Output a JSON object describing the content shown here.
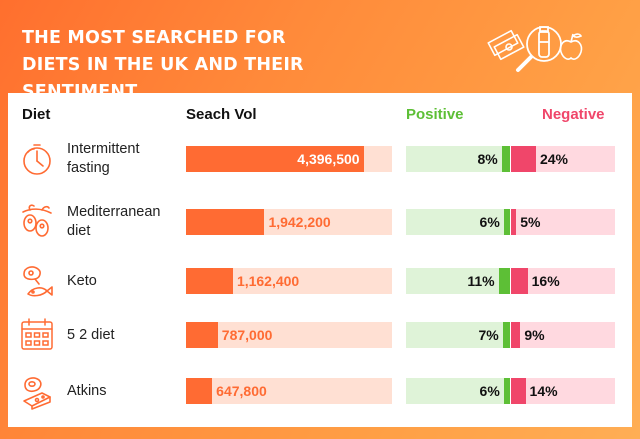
{
  "title": "THE MOST SEARCHED FOR DIETS IN THE UK AND THEIR SENTIMENT",
  "columns": {
    "diet": "Diet",
    "volume": "Seach Vol",
    "positive": "Positive",
    "negative": "Negative"
  },
  "colors": {
    "background_orange": "#ff7a33",
    "volume_fill": "#ff6b33",
    "volume_track": "#ffe0d3",
    "positive": "#5dbf36",
    "positive_track": "#dff3d8",
    "negative": "#f0466a",
    "negative_track": "#ffd9e0"
  },
  "chart_data": {
    "type": "table",
    "categories": [
      "Intermittent fasting",
      "Mediterranean diet",
      "Keto",
      "5 2 diet",
      "Atkins"
    ],
    "series": [
      {
        "name": "Seach Vol",
        "values": [
          4396500,
          1942200,
          1162400,
          787000,
          647800
        ]
      },
      {
        "name": "Positive",
        "values": [
          8,
          6,
          11,
          7,
          6
        ]
      },
      {
        "name": "Negative",
        "values": [
          24,
          5,
          16,
          9,
          14
        ]
      }
    ],
    "volume_max": 5100000,
    "sentiment_max": 100
  },
  "rows": [
    {
      "label": "Intermittent fasting",
      "icon": "stopwatch-icon",
      "volume": 4396500,
      "volume_label": "4,396,500",
      "positive": 8,
      "positive_label": "8%",
      "negative": 24,
      "negative_label": "24%"
    },
    {
      "label": "Mediterranean diet",
      "icon": "olives-icon",
      "volume": 1942200,
      "volume_label": "1,942,200",
      "positive": 6,
      "positive_label": "6%",
      "negative": 5,
      "negative_label": "5%"
    },
    {
      "label": "Keto",
      "icon": "meat-fish-icon",
      "volume": 1162400,
      "volume_label": "1,162,400",
      "positive": 11,
      "positive_label": "11%",
      "negative": 16,
      "negative_label": "16%"
    },
    {
      "label": "5 2 diet",
      "icon": "calendar-icon",
      "volume": 787000,
      "volume_label": "787,000",
      "positive": 7,
      "positive_label": "7%",
      "negative": 9,
      "negative_label": "9%"
    },
    {
      "label": "Atkins",
      "icon": "ham-cheese-icon",
      "volume": 647800,
      "volume_label": "647,800",
      "positive": 6,
      "positive_label": "6%",
      "negative": 14,
      "negative_label": "14%"
    }
  ]
}
